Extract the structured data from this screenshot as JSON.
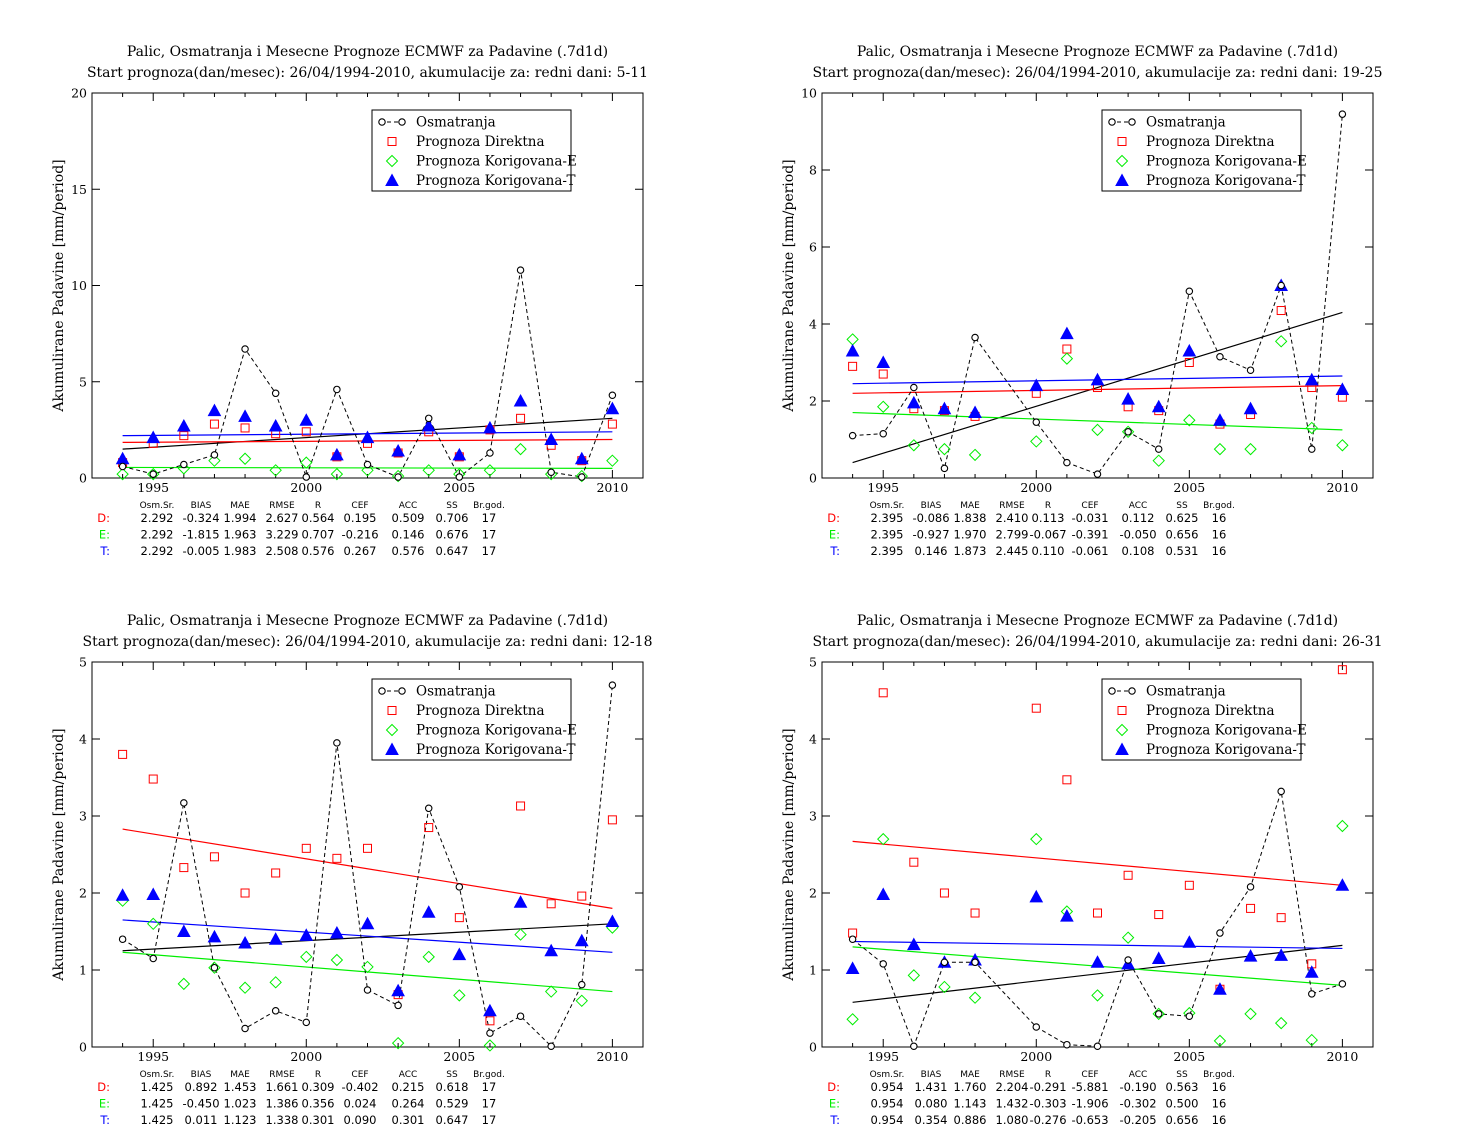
{
  "colors": {
    "obs": "#000000",
    "direct": "#ff0000",
    "corr_e": "#00ee00",
    "corr_t": "#0000ff"
  },
  "legend": [
    "Osmatranja",
    "Prognoza Direktna",
    "Prognoza Korigovana-E",
    "Prognoza Korigovana-T"
  ],
  "stat_headers": [
    "Osm.Sr.",
    "BIAS",
    "MAE",
    "RMSE",
    "R",
    "CEF",
    "ACC",
    "SS",
    "Br.god."
  ],
  "chart_data": [
    {
      "type": "scatter",
      "title": "Palic, Osmatranja i Mesecne Prognoze ECMWF za Padavine (.7d1d)",
      "subtitle": "Start prognoza(dan/mesec): 26/04/1994-2010, akumulacije za: redni dani: 5-11",
      "ylabel": "Akumulirane Padavine [mm/period]",
      "xlim": [
        1993,
        2011
      ],
      "ylim": [
        0,
        20
      ],
      "xticks": [
        1995,
        2000,
        2005,
        2010
      ],
      "yticks": [
        0,
        5,
        10,
        15,
        20
      ],
      "x": [
        1994,
        1995,
        1996,
        1997,
        1998,
        1999,
        2000,
        2001,
        2002,
        2003,
        2004,
        2005,
        2006,
        2007,
        2008,
        2009,
        2010
      ],
      "series": [
        {
          "name": "Osmatranja",
          "values": [
            0.6,
            0.2,
            0.7,
            1.2,
            6.7,
            4.4,
            0.05,
            4.6,
            0.7,
            0.05,
            3.1,
            0.05,
            1.3,
            10.8,
            0.3,
            0.05,
            4.3
          ]
        },
        {
          "name": "Prognoza Direktna",
          "values": [
            0.8,
            1.8,
            2.2,
            2.8,
            2.6,
            2.3,
            2.4,
            1.1,
            1.8,
            1.3,
            2.4,
            1.1,
            2.5,
            3.1,
            1.7,
            0.9,
            2.8
          ]
        },
        {
          "name": "Prognoza Korigovana-E",
          "values": [
            0.2,
            0.2,
            0.5,
            0.9,
            1.0,
            0.4,
            0.8,
            0.2,
            0.4,
            0.1,
            0.4,
            0.2,
            0.4,
            1.5,
            0.2,
            0.1,
            0.9
          ]
        },
        {
          "name": "Prognoza Korigovana-T",
          "values": [
            1.0,
            2.1,
            2.7,
            3.5,
            3.2,
            2.7,
            3.0,
            1.2,
            2.1,
            1.4,
            2.7,
            1.2,
            2.6,
            4.0,
            2.0,
            1.0,
            3.6
          ]
        }
      ],
      "trends": [
        [
          1.5,
          3.1
        ],
        [
          1.85,
          2.0
        ],
        [
          0.55,
          0.5
        ],
        [
          2.2,
          2.4
        ]
      ],
      "stats": [
        {
          "label": "D:",
          "values": [
            "2.292",
            "-0.324",
            "1.994",
            "2.627",
            "0.564",
            "0.195",
            "0.509",
            "0.706",
            "17"
          ]
        },
        {
          "label": "E:",
          "values": [
            "2.292",
            "-1.815",
            "1.963",
            "3.229",
            "0.707",
            "-0.216",
            "0.146",
            "0.676",
            "17"
          ]
        },
        {
          "label": "T:",
          "values": [
            "2.292",
            "-0.005",
            "1.983",
            "2.508",
            "0.576",
            "0.267",
            "0.576",
            "0.647",
            "17"
          ]
        }
      ]
    },
    {
      "type": "scatter",
      "title": "Palic, Osmatranja i Mesecne Prognoze ECMWF za Padavine (.7d1d)",
      "subtitle": "Start prognoza(dan/mesec): 26/04/1994-2010, akumulacije za: redni dani: 19-25",
      "ylabel": "Akumulirane Padavine [mm/period]",
      "xlim": [
        1993,
        2011
      ],
      "ylim": [
        0,
        10
      ],
      "xticks": [
        1995,
        2000,
        2005,
        2010
      ],
      "yticks": [
        0,
        2,
        4,
        6,
        8,
        10
      ],
      "x": [
        1994,
        1995,
        1996,
        1997,
        1998,
        1999,
        2000,
        2001,
        2002,
        2003,
        2004,
        2005,
        2006,
        2007,
        2008,
        2009,
        2010
      ],
      "series": [
        {
          "name": "Osmatranja",
          "values": [
            1.1,
            1.15,
            2.35,
            0.25,
            3.65,
            null,
            1.45,
            0.4,
            0.1,
            1.2,
            0.75,
            4.85,
            3.15,
            2.8,
            5.0,
            0.75,
            9.45
          ]
        },
        {
          "name": "Prognoza Direktna",
          "values": [
            2.9,
            2.7,
            1.8,
            1.75,
            1.6,
            null,
            2.2,
            3.35,
            2.35,
            1.85,
            1.75,
            3.0,
            1.4,
            1.65,
            4.35,
            2.35,
            2.1
          ]
        },
        {
          "name": "Prognoza Korigovana-E",
          "values": [
            3.6,
            1.85,
            0.85,
            0.75,
            0.6,
            null,
            0.95,
            3.1,
            1.25,
            1.2,
            0.45,
            1.5,
            0.75,
            0.75,
            3.55,
            1.3,
            0.85
          ]
        },
        {
          "name": "Prognoza Korigovana-T",
          "values": [
            3.3,
            3.0,
            1.95,
            1.8,
            1.7,
            null,
            2.4,
            3.75,
            2.55,
            2.05,
            1.85,
            3.3,
            1.5,
            1.8,
            5.0,
            2.55,
            2.3
          ]
        }
      ],
      "trends": [
        [
          0.4,
          4.3
        ],
        [
          2.2,
          2.4
        ],
        [
          1.7,
          1.25
        ],
        [
          2.45,
          2.65
        ]
      ],
      "stats": [
        {
          "label": "D:",
          "values": [
            "2.395",
            "-0.086",
            "1.838",
            "2.410",
            "0.113",
            "-0.031",
            "0.112",
            "0.625",
            "16"
          ]
        },
        {
          "label": "E:",
          "values": [
            "2.395",
            "-0.927",
            "1.970",
            "2.799",
            "-0.067",
            "-0.391",
            "-0.050",
            "0.656",
            "16"
          ]
        },
        {
          "label": "T:",
          "values": [
            "2.395",
            "0.146",
            "1.873",
            "2.445",
            "0.110",
            "-0.061",
            "0.108",
            "0.531",
            "16"
          ]
        }
      ]
    },
    {
      "type": "scatter",
      "title": "Palic, Osmatranja i Mesecne Prognoze ECMWF za Padavine (.7d1d)",
      "subtitle": "Start prognoza(dan/mesec): 26/04/1994-2010, akumulacije za: redni dani: 12-18",
      "ylabel": "Akumulirane Padavine [mm/period]",
      "xlim": [
        1993,
        2011
      ],
      "ylim": [
        0,
        5
      ],
      "xticks": [
        1995,
        2000,
        2005,
        2010
      ],
      "yticks": [
        0,
        1,
        2,
        3,
        4,
        5
      ],
      "x": [
        1994,
        1995,
        1996,
        1997,
        1998,
        1999,
        2000,
        2001,
        2002,
        2003,
        2004,
        2005,
        2006,
        2007,
        2008,
        2009,
        2010
      ],
      "series": [
        {
          "name": "Osmatranja",
          "values": [
            1.4,
            1.15,
            3.17,
            1.03,
            0.24,
            0.47,
            0.32,
            3.95,
            0.74,
            0.54,
            3.1,
            2.08,
            0.18,
            0.4,
            0.01,
            0.81,
            4.7
          ]
        },
        {
          "name": "Prognoza Direktna",
          "values": [
            3.8,
            3.48,
            2.33,
            2.47,
            2.0,
            2.26,
            2.58,
            2.45,
            2.58,
            0.68,
            2.85,
            1.68,
            0.34,
            3.13,
            1.86,
            1.96,
            2.95
          ]
        },
        {
          "name": "Prognoza Korigovana-E",
          "values": [
            1.9,
            1.6,
            0.82,
            1.03,
            0.77,
            0.84,
            1.17,
            1.13,
            1.04,
            0.05,
            1.17,
            0.67,
            0.02,
            1.46,
            0.72,
            0.6,
            1.55
          ]
        },
        {
          "name": "Prognoza Korigovana-T",
          "values": [
            1.97,
            1.98,
            1.5,
            1.43,
            1.35,
            1.4,
            1.45,
            1.48,
            1.6,
            0.73,
            1.75,
            1.2,
            0.47,
            1.88,
            1.25,
            1.38,
            1.63
          ]
        }
      ],
      "trends": [
        [
          1.25,
          1.6
        ],
        [
          2.83,
          1.8
        ],
        [
          1.23,
          0.72
        ],
        [
          1.65,
          1.23
        ]
      ],
      "stats": [
        {
          "label": "D:",
          "values": [
            "1.425",
            "0.892",
            "1.453",
            "1.661",
            "0.309",
            "-0.402",
            "0.215",
            "0.618",
            "17"
          ]
        },
        {
          "label": "E:",
          "values": [
            "1.425",
            "-0.450",
            "1.023",
            "1.386",
            "0.356",
            "0.024",
            "0.264",
            "0.529",
            "17"
          ]
        },
        {
          "label": "T:",
          "values": [
            "1.425",
            "0.011",
            "1.123",
            "1.338",
            "0.301",
            "0.090",
            "0.301",
            "0.647",
            "17"
          ]
        }
      ]
    },
    {
      "type": "scatter",
      "title": "Palic, Osmatranja i Mesecne Prognoze ECMWF za Padavine (.7d1d)",
      "subtitle": "Start prognoza(dan/mesec): 26/04/1994-2010, akumulacije za: redni dani: 26-31",
      "ylabel": "Akumulirane Padavine [mm/period]",
      "xlim": [
        1993,
        2011
      ],
      "ylim": [
        0,
        5
      ],
      "xticks": [
        1995,
        2000,
        2005,
        2010
      ],
      "yticks": [
        0,
        1,
        2,
        3,
        4,
        5
      ],
      "x": [
        1994,
        1995,
        1996,
        1997,
        1998,
        1999,
        2000,
        2001,
        2002,
        2003,
        2004,
        2005,
        2006,
        2007,
        2008,
        2009,
        2010
      ],
      "series": [
        {
          "name": "Osmatranja",
          "values": [
            1.4,
            1.08,
            0.01,
            1.1,
            1.1,
            null,
            0.26,
            0.03,
            0.01,
            1.13,
            0.43,
            0.4,
            1.48,
            2.08,
            3.32,
            0.69,
            0.82
          ]
        },
        {
          "name": "Prognoza Direktna",
          "values": [
            1.48,
            4.6,
            2.4,
            2.0,
            1.74,
            null,
            4.4,
            3.47,
            1.74,
            2.23,
            1.72,
            2.1,
            0.75,
            1.8,
            1.68,
            1.08,
            4.9
          ]
        },
        {
          "name": "Prognoza Korigovana-E",
          "values": [
            0.36,
            2.7,
            0.93,
            0.78,
            0.64,
            null,
            2.7,
            1.76,
            0.67,
            1.42,
            0.43,
            0.44,
            0.08,
            0.43,
            0.31,
            0.09,
            2.87
          ]
        },
        {
          "name": "Prognoza Korigovana-T",
          "values": [
            1.02,
            1.98,
            1.33,
            1.1,
            1.13,
            null,
            1.95,
            1.7,
            1.1,
            1.08,
            1.15,
            1.36,
            0.75,
            1.18,
            1.19,
            0.97,
            2.1
          ]
        }
      ],
      "trends": [
        [
          0.58,
          1.32
        ],
        [
          2.67,
          2.1
        ],
        [
          1.3,
          0.8
        ],
        [
          1.37,
          1.28
        ]
      ],
      "stats": [
        {
          "label": "D:",
          "values": [
            "0.954",
            "1.431",
            "1.760",
            "2.204",
            "-0.291",
            "-5.881",
            "-0.190",
            "0.563",
            "16"
          ]
        },
        {
          "label": "E:",
          "values": [
            "0.954",
            "0.080",
            "1.143",
            "1.432",
            "-0.303",
            "-1.906",
            "-0.302",
            "0.500",
            "16"
          ]
        },
        {
          "label": "T:",
          "values": [
            "0.954",
            "0.354",
            "0.886",
            "1.080",
            "-0.276",
            "-0.653",
            "-0.205",
            "0.656",
            "16"
          ]
        }
      ]
    }
  ]
}
